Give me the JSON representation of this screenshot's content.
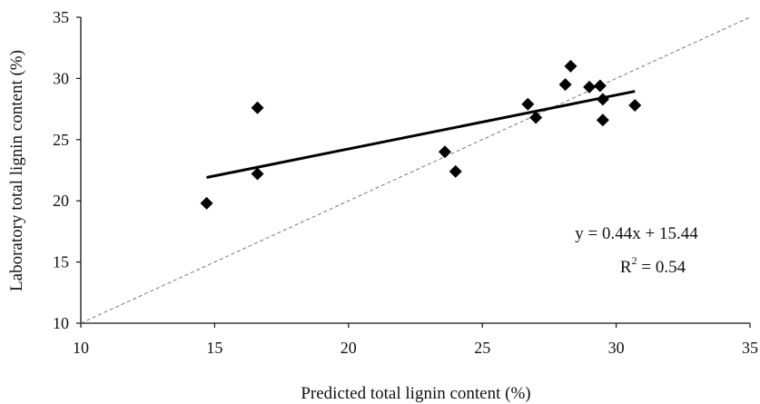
{
  "chart_data": {
    "type": "scatter",
    "xlabel": "Predicted total lignin content (%)",
    "ylabel": "Laboratory total lignin content (%)",
    "xlim": [
      10,
      35
    ],
    "ylim": [
      10,
      35
    ],
    "xticks": [
      10,
      15,
      20,
      25,
      30,
      35
    ],
    "yticks": [
      10,
      15,
      20,
      25,
      30,
      35
    ],
    "xtick_labels": [
      "10",
      "15",
      "20",
      "25",
      "30",
      "35"
    ],
    "ytick_labels": [
      "10",
      "15",
      "20",
      "25",
      "30",
      "35"
    ],
    "grid": false,
    "marker": "diamond",
    "marker_color": "#000000",
    "points": [
      {
        "x": 14.7,
        "y": 19.8
      },
      {
        "x": 16.6,
        "y": 22.2
      },
      {
        "x": 16.6,
        "y": 27.6
      },
      {
        "x": 23.6,
        "y": 24.0
      },
      {
        "x": 24.0,
        "y": 22.4
      },
      {
        "x": 26.7,
        "y": 27.9
      },
      {
        "x": 27.0,
        "y": 26.8
      },
      {
        "x": 28.1,
        "y": 29.5
      },
      {
        "x": 28.3,
        "y": 31.0
      },
      {
        "x": 29.0,
        "y": 29.3
      },
      {
        "x": 29.4,
        "y": 29.4
      },
      {
        "x": 29.5,
        "y": 28.3
      },
      {
        "x": 29.5,
        "y": 26.6
      },
      {
        "x": 30.7,
        "y": 27.8
      }
    ],
    "trendline": {
      "slope": 0.44,
      "intercept": 15.44,
      "x_from": 14.7,
      "x_to": 30.7,
      "color": "#000000"
    },
    "reference_line": {
      "from": [
        10,
        10
      ],
      "to": [
        35,
        35
      ],
      "style": "dashed",
      "color": "#777777"
    },
    "annotations": {
      "equation": "y = 0.44x + 15.44",
      "r2_base": "R",
      "r2_sup": "2",
      "r2_value": " = 0.54"
    }
  }
}
